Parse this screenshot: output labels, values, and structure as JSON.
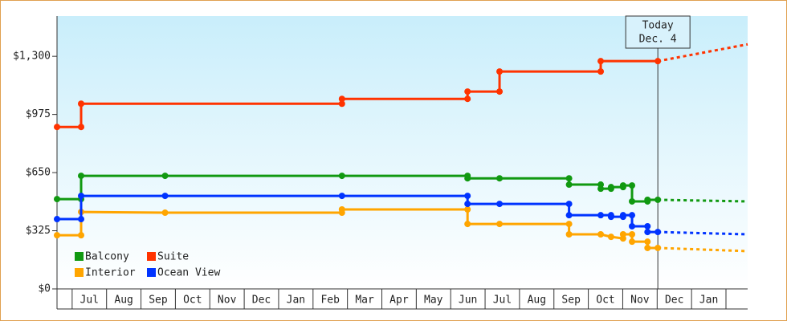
{
  "chart_data": {
    "type": "step-line",
    "xlim": [
      0.56,
      20.63
    ],
    "xticks": [
      {
        "value": 1,
        "label": "Jul"
      },
      {
        "value": 2,
        "label": "Aug"
      },
      {
        "value": 3,
        "label": "Sep"
      },
      {
        "value": 4,
        "label": "Oct"
      },
      {
        "value": 5,
        "label": "Nov"
      },
      {
        "value": 6,
        "label": "Dec"
      },
      {
        "value": 7,
        "label": "Jan"
      },
      {
        "value": 8,
        "label": "Feb"
      },
      {
        "value": 9,
        "label": "Mar"
      },
      {
        "value": 10,
        "label": "Apr"
      },
      {
        "value": 11,
        "label": "May"
      },
      {
        "value": 12,
        "label": "Jun"
      },
      {
        "value": 13,
        "label": "Jul"
      },
      {
        "value": 14,
        "label": "Aug"
      },
      {
        "value": 15,
        "label": "Sep"
      },
      {
        "value": 16,
        "label": "Oct"
      },
      {
        "value": 17,
        "label": "Nov"
      },
      {
        "value": 18,
        "label": "Dec"
      },
      {
        "value": 19,
        "label": "Jan"
      }
    ],
    "ylim": [
      0,
      1525
    ],
    "yticks": [
      {
        "value": 0,
        "label": "$0"
      },
      {
        "value": 325,
        "label": "$325"
      },
      {
        "value": 650,
        "label": "$650"
      },
      {
        "value": 975,
        "label": "$975"
      },
      {
        "value": 1300,
        "label": "$1,300"
      }
    ],
    "annotation": {
      "x": 18.02,
      "lines": [
        "Today",
        "Dec. 4"
      ]
    },
    "legend": "bottom-left",
    "series": [
      {
        "name": "Balcony",
        "color": "#119911",
        "x": [
          0.56,
          1.26,
          1.26,
          3.7,
          8.84,
          12.49,
          12.49,
          13.42,
          15.44,
          15.44,
          16.36,
          16.36,
          16.66,
          16.66,
          17.01,
          17.01,
          17.27,
          17.27,
          17.72,
          17.72,
          18.02
        ],
        "values": [
          502,
          502,
          632,
          632,
          632,
          632,
          618,
          618,
          618,
          583,
          583,
          560,
          560,
          569,
          569,
          578,
          578,
          489,
          489,
          498,
          498
        ],
        "projection": {
          "x": [
            18.02,
            20.63
          ],
          "values": [
            498,
            489
          ]
        }
      },
      {
        "name": "Suite",
        "color": "#ff3300",
        "x": [
          0.56,
          1.26,
          1.26,
          8.84,
          8.84,
          12.49,
          12.49,
          13.42,
          13.42,
          16.36,
          16.36,
          18.02
        ],
        "values": [
          905,
          905,
          1035,
          1035,
          1062,
          1062,
          1103,
          1103,
          1215,
          1215,
          1273,
          1273
        ],
        "projection": {
          "x": [
            18.02,
            20.63
          ],
          "values": [
            1273,
            1367
          ]
        }
      },
      {
        "name": "Interior",
        "color": "#ffa500",
        "x": [
          0.56,
          1.26,
          1.26,
          3.7,
          8.84,
          8.84,
          12.49,
          12.49,
          13.42,
          15.44,
          15.44,
          16.36,
          16.66,
          17.01,
          17.01,
          17.27,
          17.27,
          17.72,
          17.72,
          18.02
        ],
        "values": [
          300,
          300,
          430,
          426,
          426,
          444,
          444,
          363,
          363,
          363,
          305,
          305,
          291,
          282,
          305,
          305,
          264,
          264,
          229,
          229
        ],
        "projection": {
          "x": [
            18.02,
            20.63
          ],
          "values": [
            229,
            211
          ]
        }
      },
      {
        "name": "Ocean View",
        "color": "#0033ff",
        "x": [
          0.56,
          1.26,
          1.26,
          3.7,
          8.84,
          12.49,
          12.49,
          13.42,
          15.44,
          15.44,
          16.36,
          16.66,
          16.66,
          17.01,
          17.01,
          17.27,
          17.27,
          17.72,
          17.72,
          18.02
        ],
        "values": [
          390,
          390,
          520,
          520,
          520,
          520,
          475,
          475,
          475,
          412,
          412,
          412,
          403,
          403,
          412,
          412,
          350,
          350,
          318,
          318
        ],
        "projection": {
          "x": [
            18.02,
            20.63
          ],
          "values": [
            318,
            305
          ]
        }
      }
    ]
  }
}
